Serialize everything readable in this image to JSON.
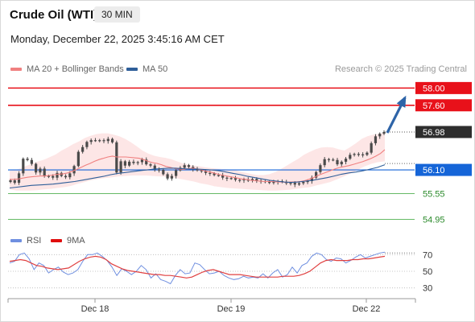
{
  "header": {
    "instrument": "Crude Oil (WTI)",
    "timeframe": "30 MIN",
    "datetime": "Monday, December 22, 2025 3:45:16 AM CET"
  },
  "legend": {
    "ma20_label": "MA 20 + Bollinger Bands",
    "ma50_label": "MA 50",
    "credit": "Research © 2025 Trading Central"
  },
  "rsi_legend": {
    "rsi_label": "RSI",
    "ma_label": "9MA"
  },
  "colors": {
    "ma20": "#f08080",
    "ma50": "#2e5e99",
    "bollinger_fill": "#fde3e3",
    "resistance": "#e8111a",
    "pivot": "#1565d8",
    "support": "#33a333",
    "support_text": "#2b8a2b",
    "last_price_bg": "#2e2e2e",
    "arrow": "#2e64a8",
    "candle": "#4a4a4a",
    "rsi": "#6f8fe0",
    "rsi_ma": "#e04040"
  },
  "chart_data": [
    {
      "type": "line",
      "name": "price-panel",
      "price_range": [
        54.7,
        58.25
      ],
      "x_ticks": [
        "Dec 18",
        "Dec 19",
        "Dec 22"
      ],
      "levels": [
        {
          "label": "58.00",
          "value": 58.0,
          "kind": "resistance"
        },
        {
          "label": "57.60",
          "value": 57.6,
          "kind": "resistance"
        },
        {
          "label": "56.98",
          "value": 56.98,
          "kind": "last"
        },
        {
          "label": "56.10",
          "value": 56.1,
          "kind": "pivot"
        },
        {
          "label": "55.55",
          "value": 55.55,
          "kind": "support"
        },
        {
          "label": "54.95",
          "value": 54.95,
          "kind": "support"
        }
      ],
      "close": [
        55.86,
        55.8,
        56.02,
        56.36,
        56.33,
        56.24,
        56.04,
        56.13,
        55.95,
        55.96,
        55.92,
        56.03,
        55.96,
        55.93,
        56.02,
        56.19,
        56.52,
        56.63,
        56.75,
        56.79,
        56.78,
        56.79,
        56.77,
        56.82,
        56.74,
        56.04,
        56.3,
        56.2,
        56.29,
        56.26,
        56.28,
        56.34,
        56.23,
        56.2,
        56.11,
        56.1,
        56.0,
        55.9,
        55.96,
        56.09,
        56.15,
        56.21,
        56.17,
        56.12,
        56.09,
        56.07,
        56.03,
        56.02,
        55.98,
        55.98,
        55.92,
        55.9,
        55.91,
        55.87,
        55.86,
        55.88,
        55.85,
        55.89,
        55.85,
        55.84,
        55.82,
        55.81,
        55.82,
        55.84,
        55.82,
        55.79,
        55.8,
        55.76,
        55.79,
        55.82,
        55.84,
        55.92,
        56.05,
        56.21,
        56.35,
        56.34,
        56.33,
        56.23,
        56.29,
        56.36,
        56.45,
        56.47,
        56.46,
        56.45,
        56.5,
        56.72,
        56.88,
        56.94,
        56.98
      ],
      "ma20": [
        55.88,
        55.88,
        55.89,
        55.91,
        55.93,
        55.94,
        55.95,
        55.96,
        55.96,
        55.97,
        55.99,
        56.0,
        56.01,
        56.03,
        56.07,
        56.11,
        56.16,
        56.21,
        56.25,
        56.3,
        56.34,
        56.37,
        56.4,
        56.42,
        56.4,
        56.4,
        56.4,
        56.39,
        56.38,
        56.37,
        56.34,
        56.3,
        56.27,
        56.25,
        56.22,
        56.18,
        56.16,
        56.13,
        56.12,
        56.11,
        56.13,
        56.14,
        56.12,
        56.1,
        56.07,
        56.05,
        56.02,
        55.99,
        55.97,
        55.95,
        55.93,
        55.91,
        55.89,
        55.88,
        55.86,
        55.85,
        55.84,
        55.83,
        55.83,
        55.83,
        55.82,
        55.82,
        55.81,
        55.82,
        55.82,
        55.83,
        55.85,
        55.88,
        55.92,
        55.97,
        56.01,
        56.05,
        56.09,
        56.13,
        56.16,
        56.18,
        56.2,
        56.23,
        56.26,
        56.29,
        56.33,
        56.37,
        56.42,
        56.48,
        56.57
      ],
      "bb_upper": [
        56.08,
        56.1,
        56.14,
        56.2,
        56.25,
        56.3,
        56.34,
        56.4,
        56.46,
        56.55,
        56.62,
        56.7,
        56.76,
        56.84,
        56.89,
        56.93,
        56.95,
        56.95,
        56.92,
        56.88,
        56.82,
        56.74,
        56.65,
        56.55,
        56.48,
        56.43,
        56.4,
        56.38,
        56.35,
        56.3,
        56.25,
        56.22,
        56.2,
        56.18,
        56.16,
        56.14,
        56.13,
        56.12,
        56.11,
        56.1,
        56.06,
        56.03,
        56.0,
        55.98,
        55.98,
        56.0,
        56.05,
        56.12,
        56.2,
        56.28,
        56.36,
        56.45,
        56.52,
        56.58,
        56.62,
        56.63,
        56.62,
        56.58,
        56.55,
        56.63,
        56.72,
        56.82,
        56.88,
        56.92,
        56.94,
        56.96
      ],
      "bb_lower": [
        55.65,
        55.62,
        55.62,
        55.62,
        55.63,
        55.65,
        55.66,
        55.68,
        55.7,
        55.73,
        55.78,
        55.82,
        55.86,
        55.89,
        55.91,
        55.93,
        55.95,
        55.96,
        55.97,
        55.97,
        55.97,
        55.96,
        55.95,
        55.94,
        55.92,
        55.89,
        55.86,
        55.83,
        55.79,
        55.76,
        55.72,
        55.7,
        55.68,
        55.67,
        55.66,
        55.65,
        55.64,
        55.63,
        55.62,
        55.62,
        55.63,
        55.64,
        55.66,
        55.68,
        55.7,
        55.74,
        55.78,
        55.82,
        55.88,
        55.95,
        56.02,
        56.1,
        56.18,
        56.24,
        56.28,
        56.3
      ],
      "ma50": [
        55.68,
        55.7,
        55.72,
        55.74,
        55.75,
        55.76,
        55.77,
        55.79,
        55.81,
        55.83,
        55.86,
        55.89,
        55.92,
        55.95,
        55.99,
        56.02,
        56.04,
        56.06,
        56.08,
        56.1,
        56.12,
        56.13,
        56.14,
        56.14,
        56.13,
        56.12,
        56.12,
        56.11,
        56.1,
        56.08,
        56.05,
        56.02,
        55.99,
        55.95,
        55.92,
        55.89,
        55.86,
        55.84,
        55.82,
        55.81,
        55.82,
        55.84,
        55.86,
        55.89,
        55.92,
        55.96,
        56.0,
        56.03,
        56.05,
        56.08,
        56.12,
        56.16,
        56.22
      ]
    },
    {
      "type": "line",
      "name": "rsi-panel",
      "y_range": [
        20,
        80
      ],
      "y_ticks": [
        "70",
        "50",
        "30"
      ],
      "series": [
        {
          "name": "RSI",
          "values": [
            60,
            62,
            70,
            72,
            65,
            52,
            60,
            57,
            48,
            52,
            55,
            49,
            46,
            48,
            52,
            62,
            70,
            70,
            72,
            68,
            63,
            55,
            45,
            53,
            50,
            46,
            50,
            57,
            52,
            42,
            47,
            40,
            38,
            35,
            45,
            52,
            47,
            48,
            60,
            58,
            52,
            47,
            48,
            50,
            45,
            42,
            40,
            41,
            44,
            42,
            43,
            42,
            47,
            42,
            48,
            52,
            43,
            46,
            55,
            48,
            57,
            60,
            68,
            72,
            70,
            64,
            62,
            66,
            65,
            60,
            63,
            67,
            70,
            66,
            68,
            70,
            72,
            73
          ]
        },
        {
          "name": "9MA",
          "values": [
            62,
            63,
            64,
            63,
            60,
            57,
            56,
            54,
            53,
            52,
            53,
            54,
            58,
            62,
            65,
            67,
            68,
            67,
            64,
            59,
            56,
            53,
            51,
            50,
            49,
            48,
            47,
            46,
            46,
            45,
            45,
            44,
            43,
            42,
            43,
            46,
            49,
            51,
            52,
            50,
            48,
            46,
            46,
            46,
            45,
            44,
            43,
            43,
            43,
            43,
            43,
            44,
            44,
            44,
            45,
            47,
            50,
            55,
            60,
            63,
            64,
            63,
            63,
            63,
            64,
            64,
            65,
            65,
            66,
            67,
            68
          ]
        }
      ]
    }
  ]
}
